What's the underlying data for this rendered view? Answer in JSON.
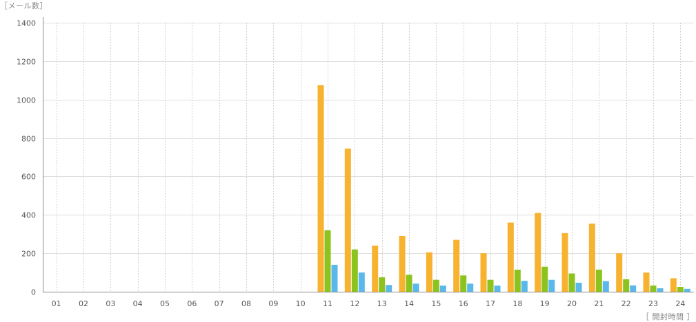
{
  "chart_data": {
    "type": "bar",
    "ylabel": "［メール数］",
    "xlabel": "［ 開封時間 ］",
    "categories": [
      "01",
      "02",
      "03",
      "04",
      "05",
      "06",
      "07",
      "08",
      "09",
      "10",
      "11",
      "12",
      "13",
      "14",
      "15",
      "16",
      "17",
      "18",
      "19",
      "20",
      "21",
      "22",
      "23",
      "24"
    ],
    "ylim": [
      0,
      1400
    ],
    "yticks": [
      0,
      200,
      400,
      600,
      800,
      1000,
      1200,
      1400
    ],
    "grid": true,
    "series": [
      {
        "color": "#f7b22f",
        "values": [
          0,
          0,
          0,
          0,
          0,
          0,
          0,
          0,
          0,
          0,
          1075,
          745,
          240,
          290,
          205,
          270,
          200,
          360,
          410,
          305,
          355,
          200,
          100,
          70
        ]
      },
      {
        "color": "#8cc31f",
        "values": [
          0,
          0,
          0,
          0,
          0,
          0,
          0,
          0,
          0,
          0,
          320,
          220,
          75,
          88,
          62,
          85,
          62,
          115,
          130,
          95,
          115,
          65,
          32,
          25
        ]
      },
      {
        "color": "#5bb8ea",
        "values": [
          0,
          0,
          0,
          0,
          0,
          0,
          0,
          0,
          0,
          0,
          140,
          100,
          35,
          42,
          32,
          42,
          32,
          57,
          62,
          47,
          55,
          33,
          18,
          15
        ]
      }
    ]
  }
}
